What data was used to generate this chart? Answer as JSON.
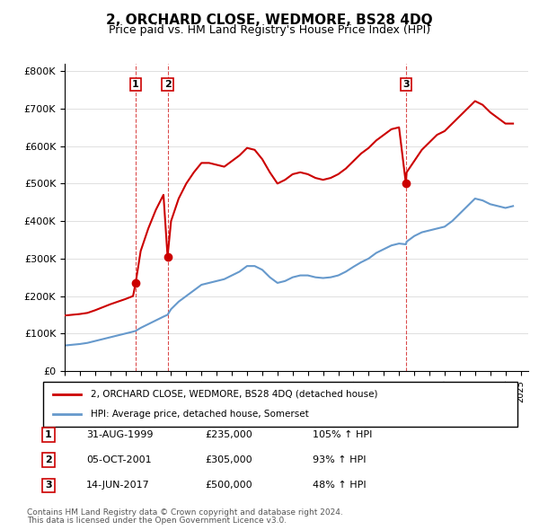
{
  "title": "2, ORCHARD CLOSE, WEDMORE, BS28 4DQ",
  "subtitle": "Price paid vs. HM Land Registry's House Price Index (HPI)",
  "ylabel_ticks": [
    "£0",
    "£100K",
    "£200K",
    "£300K",
    "£400K",
    "£500K",
    "£600K",
    "£700K",
    "£800K"
  ],
  "ylim": [
    0,
    800000
  ],
  "xlim_start": 1995.0,
  "xlim_end": 2025.5,
  "legend_line1": "2, ORCHARD CLOSE, WEDMORE, BS28 4DQ (detached house)",
  "legend_line2": "HPI: Average price, detached house, Somerset",
  "sales": [
    {
      "label": "1",
      "date": "31-AUG-1999",
      "price": 235000,
      "pct": "105%",
      "x_year": 1999.67
    },
    {
      "label": "2",
      "date": "05-OCT-2001",
      "price": 305000,
      "pct": "93%",
      "x_year": 2001.77
    },
    {
      "label": "3",
      "date": "14-JUN-2017",
      "price": 500000,
      "pct": "48%",
      "x_year": 2017.45
    }
  ],
  "footnote1": "Contains HM Land Registry data © Crown copyright and database right 2024.",
  "footnote2": "This data is licensed under the Open Government Licence v3.0.",
  "red_color": "#cc0000",
  "blue_color": "#6699cc",
  "hpi_x": [
    1995.0,
    1995.5,
    1996.0,
    1996.5,
    1997.0,
    1997.5,
    1998.0,
    1998.5,
    1999.0,
    1999.5,
    1999.67,
    2000.0,
    2000.5,
    2001.0,
    2001.5,
    2001.77,
    2002.0,
    2002.5,
    2003.0,
    2003.5,
    2004.0,
    2004.5,
    2005.0,
    2005.5,
    2006.0,
    2006.5,
    2007.0,
    2007.5,
    2008.0,
    2008.5,
    2009.0,
    2009.5,
    2010.0,
    2010.5,
    2011.0,
    2011.5,
    2012.0,
    2012.5,
    2013.0,
    2013.5,
    2014.0,
    2014.5,
    2015.0,
    2015.5,
    2016.0,
    2016.5,
    2017.0,
    2017.45,
    2017.5,
    2018.0,
    2018.5,
    2019.0,
    2019.5,
    2020.0,
    2020.5,
    2021.0,
    2021.5,
    2022.0,
    2022.5,
    2023.0,
    2023.5,
    2024.0,
    2024.5
  ],
  "hpi_y": [
    68000,
    70000,
    72000,
    75000,
    80000,
    85000,
    90000,
    95000,
    100000,
    105000,
    107000,
    115000,
    125000,
    135000,
    145000,
    150000,
    165000,
    185000,
    200000,
    215000,
    230000,
    235000,
    240000,
    245000,
    255000,
    265000,
    280000,
    280000,
    270000,
    250000,
    235000,
    240000,
    250000,
    255000,
    255000,
    250000,
    248000,
    250000,
    255000,
    265000,
    278000,
    290000,
    300000,
    315000,
    325000,
    335000,
    340000,
    338000,
    345000,
    360000,
    370000,
    375000,
    380000,
    385000,
    400000,
    420000,
    440000,
    460000,
    455000,
    445000,
    440000,
    435000,
    440000
  ],
  "prop_x": [
    1995.0,
    1995.5,
    1996.0,
    1996.5,
    1997.0,
    1997.5,
    1998.0,
    1998.5,
    1999.0,
    1999.5,
    1999.67,
    2000.0,
    2000.5,
    2001.0,
    2001.5,
    2001.77,
    2002.0,
    2002.5,
    2003.0,
    2003.5,
    2004.0,
    2004.5,
    2005.0,
    2005.5,
    2006.0,
    2006.5,
    2007.0,
    2007.5,
    2008.0,
    2008.5,
    2009.0,
    2009.5,
    2010.0,
    2010.5,
    2011.0,
    2011.5,
    2012.0,
    2012.5,
    2013.0,
    2013.5,
    2014.0,
    2014.5,
    2015.0,
    2015.5,
    2016.0,
    2016.5,
    2017.0,
    2017.45,
    2017.5,
    2018.0,
    2018.5,
    2019.0,
    2019.5,
    2020.0,
    2020.5,
    2021.0,
    2021.5,
    2022.0,
    2022.5,
    2023.0,
    2023.5,
    2024.0,
    2024.5
  ],
  "prop_y": [
    148000,
    150000,
    152000,
    155000,
    162000,
    170000,
    178000,
    185000,
    192000,
    200000,
    235000,
    320000,
    380000,
    430000,
    470000,
    305000,
    400000,
    460000,
    500000,
    530000,
    555000,
    555000,
    550000,
    545000,
    560000,
    575000,
    595000,
    590000,
    565000,
    530000,
    500000,
    510000,
    525000,
    530000,
    525000,
    515000,
    510000,
    515000,
    525000,
    540000,
    560000,
    580000,
    595000,
    615000,
    630000,
    645000,
    650000,
    500000,
    530000,
    560000,
    590000,
    610000,
    630000,
    640000,
    660000,
    680000,
    700000,
    720000,
    710000,
    690000,
    675000,
    660000,
    660000
  ]
}
